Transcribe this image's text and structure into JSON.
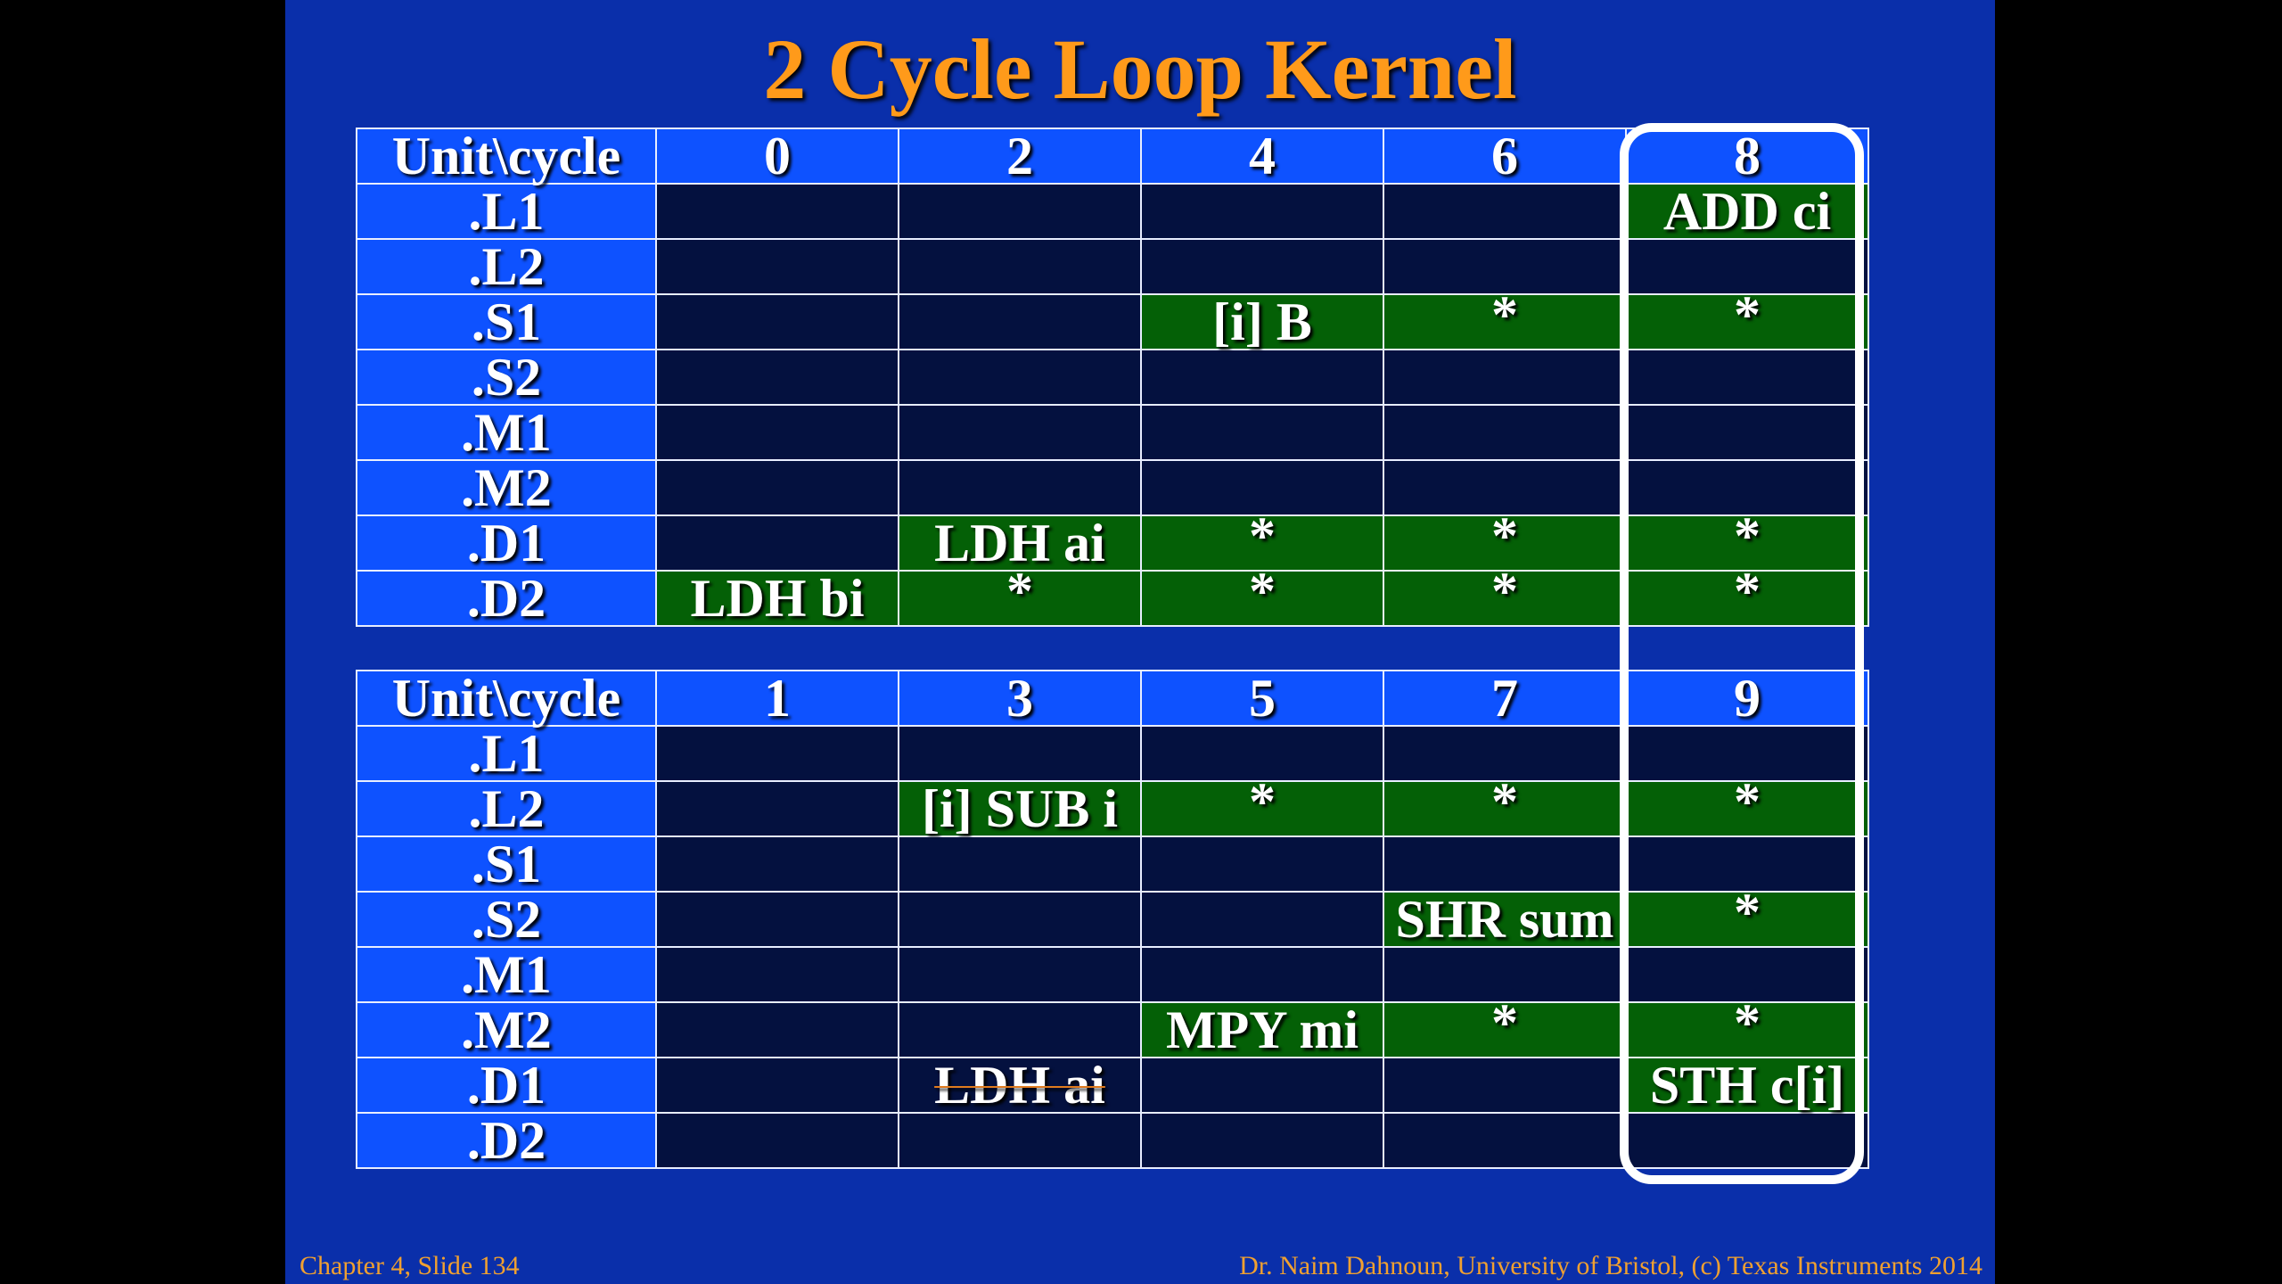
{
  "title": "2 Cycle Loop Kernel",
  "tables": [
    {
      "header": [
        "Unit\\cycle",
        "0",
        "2",
        "4",
        "6",
        "8"
      ],
      "rows": [
        {
          "unit": ".L1",
          "cells": [
            "",
            "",
            "",
            "",
            "ADD ci"
          ]
        },
        {
          "unit": ".L2",
          "cells": [
            "",
            "",
            "",
            "",
            ""
          ]
        },
        {
          "unit": ".S1",
          "cells": [
            "",
            "",
            "[i] B",
            "*",
            "*"
          ]
        },
        {
          "unit": ".S2",
          "cells": [
            "",
            "",
            "",
            "",
            ""
          ]
        },
        {
          "unit": ".M1",
          "cells": [
            "",
            "",
            "",
            "",
            ""
          ]
        },
        {
          "unit": ".M2",
          "cells": [
            "",
            "",
            "",
            "",
            ""
          ]
        },
        {
          "unit": ".D1",
          "cells": [
            "",
            "LDH ai",
            "*",
            "*",
            "*"
          ]
        },
        {
          "unit": ".D2",
          "cells": [
            "LDH bi",
            "*",
            "*",
            "*",
            "*"
          ]
        }
      ]
    },
    {
      "header": [
        "Unit\\cycle",
        "1",
        "3",
        "5",
        "7",
        "9"
      ],
      "rows": [
        {
          "unit": ".L1",
          "cells": [
            "",
            "",
            "",
            "",
            ""
          ]
        },
        {
          "unit": ".L2",
          "cells": [
            "",
            "[i] SUB i",
            "*",
            "*",
            "*"
          ]
        },
        {
          "unit": ".S1",
          "cells": [
            "",
            "",
            "",
            "",
            ""
          ]
        },
        {
          "unit": ".S2",
          "cells": [
            "",
            "",
            "",
            "SHR sum",
            "*"
          ]
        },
        {
          "unit": ".M1",
          "cells": [
            "",
            "",
            "",
            "",
            ""
          ]
        },
        {
          "unit": ".M2",
          "cells": [
            "",
            "",
            "MPY mi",
            "*",
            "*"
          ]
        },
        {
          "unit": ".D1",
          "cells": [
            "",
            "LDH ai",
            "",
            "",
            "STH c[i]"
          ]
        },
        {
          "unit": ".D2",
          "cells": [
            "",
            "",
            "",
            "",
            ""
          ]
        }
      ]
    }
  ],
  "footer": {
    "left": "Chapter 4, Slide 134",
    "right": "Dr. Naim Dahnoun, University of Bristol,  (c) Texas Instruments 2014"
  },
  "colors": {
    "slide_background": "#0A2FAA",
    "title": "#FF9A1A",
    "header_cell": "#0E52FF",
    "empty_cell": "#04113F",
    "active_cell": "#046006",
    "footer_text": "#F0A030"
  }
}
